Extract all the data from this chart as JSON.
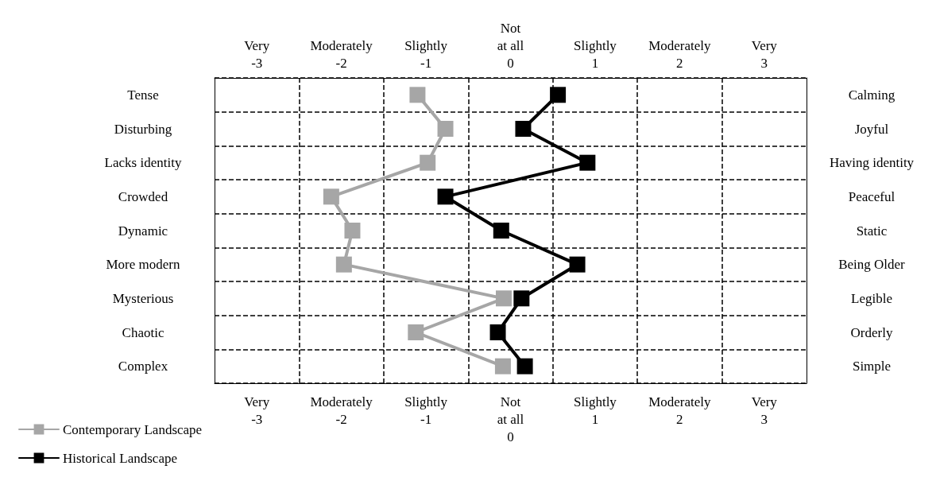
{
  "chart_data": {
    "type": "line",
    "categories": [
      "Tense",
      "Disturbing",
      "Lacks identity",
      "Crowded",
      "Dynamic",
      "More modern",
      "Mysterious",
      "Chaotic",
      "Complex"
    ],
    "y2_categories": [
      "Calming",
      "Joyful",
      "Having identity",
      "Peaceful",
      "Static",
      "Being Older",
      "Legible",
      "Orderly",
      "Simple"
    ],
    "orientation": "horizontal",
    "xlim": [
      -3.5,
      3.5
    ],
    "xticks": [
      {
        "value": -3,
        "label": "Very\n-3"
      },
      {
        "value": -2,
        "label": "Moderately\n-2"
      },
      {
        "value": -1,
        "label": "Slightly\n-1"
      },
      {
        "value": 0,
        "label": "Not\nat all\n0"
      },
      {
        "value": 1,
        "label": "Slightly\n1"
      },
      {
        "value": 2,
        "label": "Moderately\n2"
      },
      {
        "value": 3,
        "label": "Very\n3"
      }
    ],
    "x2lim": [
      -3.5,
      3.5
    ],
    "x2ticks": [
      {
        "value": -3,
        "label": "Very\n-3"
      },
      {
        "value": -2,
        "label": "Moderately\n-2"
      },
      {
        "value": -1,
        "label": "Slightly\n-1"
      },
      {
        "value": 0,
        "label": "Not\nat all\n0"
      },
      {
        "value": 1,
        "label": "Slightly\n1"
      },
      {
        "value": 2,
        "label": "Moderately\n2"
      },
      {
        "value": 3,
        "label": "Very\n3"
      }
    ],
    "series": [
      {
        "name": "Contemporary Landscape",
        "color": "#a6a6a6",
        "values": [
          -1.1,
          -0.77,
          -0.98,
          -2.12,
          -1.87,
          -1.97,
          -0.08,
          -1.12,
          -0.09
        ]
      },
      {
        "name": "Historical Landscape",
        "color": "#000000",
        "values": [
          0.56,
          0.15,
          0.91,
          -0.77,
          -0.11,
          0.79,
          0.13,
          -0.15,
          0.17
        ]
      }
    ],
    "marker": "square",
    "line_style": "solid",
    "grid": true,
    "legend": "bottom left"
  }
}
